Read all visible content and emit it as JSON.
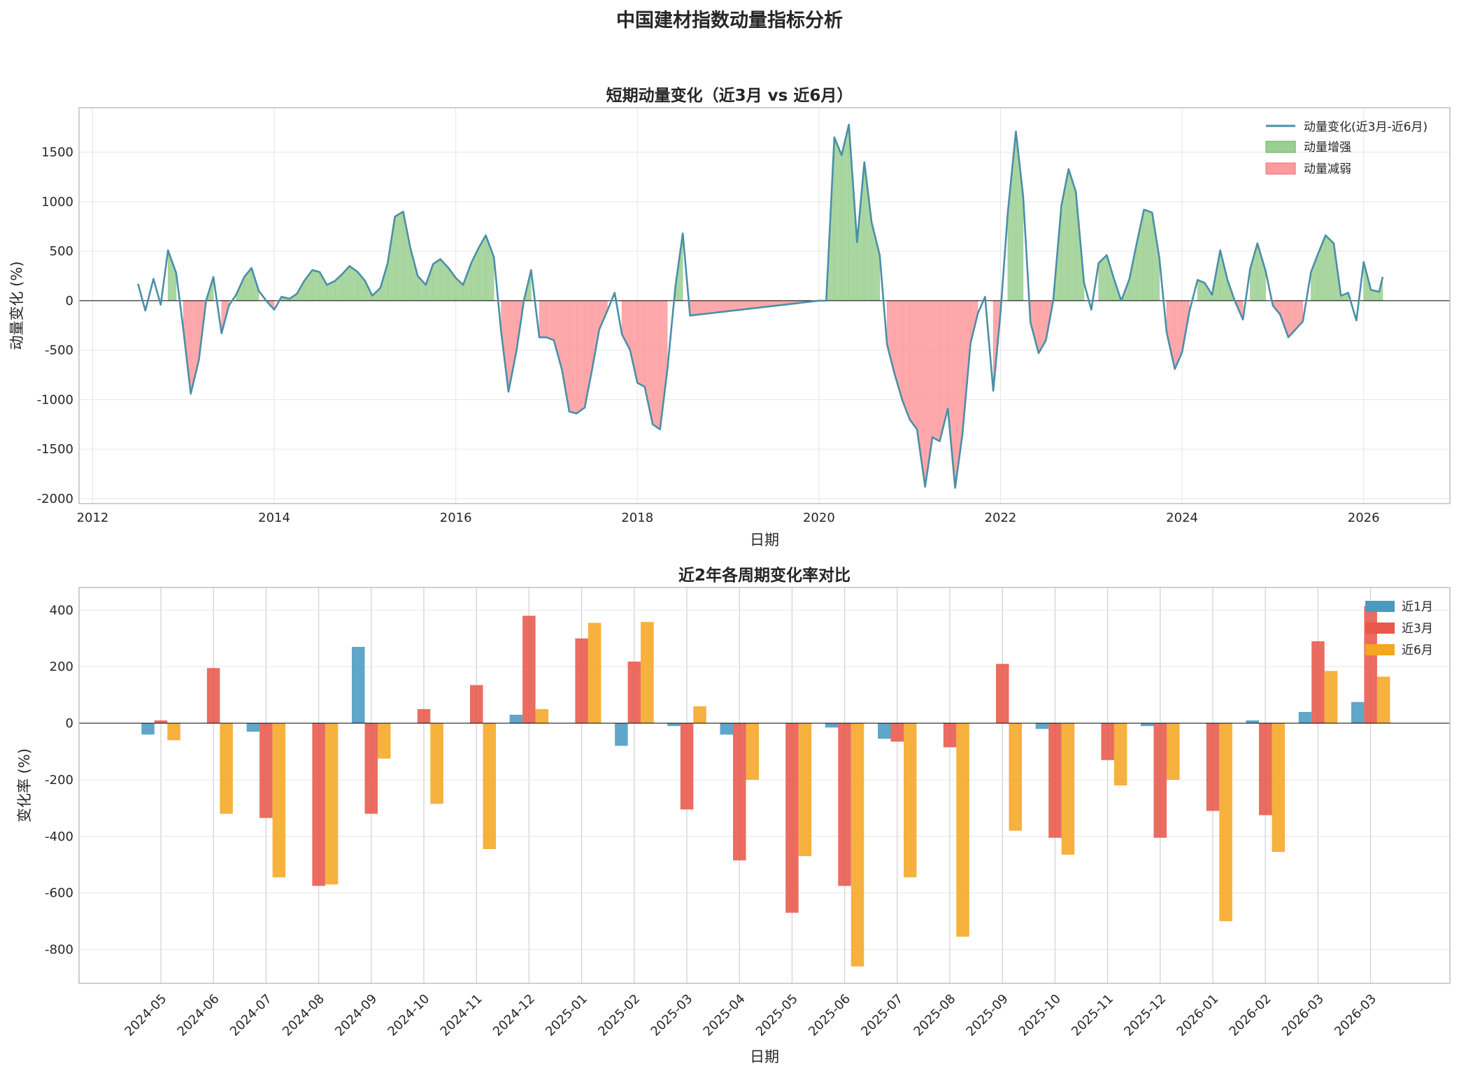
{
  "figure_title": "中国建材指数动量指标分析",
  "colors": {
    "line": "#4a8fa8",
    "pos_fill": "#9bcf91",
    "neg_fill": "#fd9a9e",
    "m1": "#4a9ac0",
    "m3": "#e8584a",
    "m6": "#f5a623",
    "grid": "#e6e6e6",
    "axis": "#bfbfbf",
    "text": "#262626"
  },
  "chart_data": [
    {
      "type": "line",
      "title": "短期动量变化（近3月 vs 近6月）",
      "xlabel": "日期",
      "ylabel": "动量变化 (%)",
      "xlim": [
        2011.85,
        2026.95
      ],
      "ylim": [
        -2050,
        1950
      ],
      "xticks": [
        2012,
        2014,
        2016,
        2018,
        2020,
        2022,
        2024,
        2026
      ],
      "xtick_labels": [
        "2012",
        "2014",
        "2016",
        "2018",
        "2020",
        "2022",
        "2024",
        "2026"
      ],
      "yticks": [
        -2000,
        -1500,
        -1000,
        -500,
        0,
        500,
        1000,
        1500
      ],
      "ytick_labels": [
        "-2000",
        "-1500",
        "-1000",
        "-500",
        "0",
        "500",
        "1000",
        "1500"
      ],
      "legend": {
        "position": "top-right",
        "line_label": "动量变化(近3月-近6月)",
        "pos_label": "动量增强",
        "neg_label": "动量减弱"
      },
      "x": [
        2012.5,
        2012.58,
        2012.67,
        2012.75,
        2012.83,
        2012.92,
        2013.0,
        2013.08,
        2013.17,
        2013.25,
        2013.33,
        2013.42,
        2013.5,
        2013.58,
        2013.67,
        2013.75,
        2013.83,
        2013.92,
        2014.0,
        2014.08,
        2014.17,
        2014.25,
        2014.33,
        2014.42,
        2014.5,
        2014.58,
        2014.67,
        2014.75,
        2014.83,
        2014.92,
        2015.0,
        2015.08,
        2015.17,
        2015.25,
        2015.33,
        2015.42,
        2015.5,
        2015.58,
        2015.67,
        2015.75,
        2015.83,
        2015.92,
        2016.0,
        2016.08,
        2016.17,
        2016.25,
        2016.33,
        2016.42,
        2016.5,
        2016.58,
        2016.67,
        2016.75,
        2016.83,
        2016.92,
        2017.0,
        2017.08,
        2017.17,
        2017.25,
        2017.33,
        2017.42,
        2017.5,
        2017.58,
        2017.67,
        2017.75,
        2017.83,
        2017.92,
        2018.0,
        2018.08,
        2018.17,
        2018.25,
        2018.33,
        2018.42,
        2018.5,
        2018.58,
        2020.0,
        2020.08,
        2020.17,
        2020.25,
        2020.33,
        2020.42,
        2020.5,
        2020.58,
        2020.67,
        2020.75,
        2020.83,
        2020.92,
        2021.0,
        2021.08,
        2021.17,
        2021.25,
        2021.33,
        2021.42,
        2021.5,
        2021.58,
        2021.67,
        2021.75,
        2021.83,
        2021.92,
        2022.0,
        2022.08,
        2022.17,
        2022.25,
        2022.33,
        2022.42,
        2022.5,
        2022.58,
        2022.67,
        2022.75,
        2022.83,
        2022.92,
        2023.0,
        2023.08,
        2023.17,
        2023.25,
        2023.33,
        2023.42,
        2023.5,
        2023.58,
        2023.67,
        2023.75,
        2023.83,
        2023.92,
        2024.0,
        2024.08,
        2024.17,
        2024.25,
        2024.33,
        2024.42,
        2024.5,
        2024.58,
        2024.67,
        2024.75,
        2024.83,
        2024.92,
        2025.0,
        2025.08,
        2025.17,
        2025.25,
        2025.33,
        2025.42,
        2025.5,
        2025.58,
        2025.67,
        2025.75,
        2025.83,
        2025.92,
        2026.0,
        2026.08,
        2026.17,
        2026.21
      ],
      "y": [
        170,
        -100,
        220,
        -40,
        510,
        280,
        -300,
        -940,
        -600,
        0,
        240,
        -330,
        -50,
        60,
        240,
        330,
        100,
        -10,
        -90,
        40,
        20,
        70,
        200,
        310,
        290,
        160,
        200,
        270,
        350,
        290,
        200,
        50,
        130,
        380,
        850,
        900,
        530,
        250,
        160,
        370,
        420,
        330,
        230,
        160,
        380,
        530,
        660,
        440,
        -320,
        -920,
        -500,
        0,
        310,
        -370,
        -370,
        -400,
        -700,
        -1120,
        -1140,
        -1080,
        -700,
        -290,
        -100,
        80,
        -340,
        -500,
        -830,
        -870,
        -1250,
        -1300,
        -700,
        150,
        680,
        -150,
        0,
        0,
        1650,
        1470,
        1780,
        590,
        1400,
        790,
        460,
        -440,
        -730,
        -1010,
        -1200,
        -1300,
        -1880,
        -1380,
        -1420,
        -1090,
        -1890,
        -1350,
        -430,
        -130,
        40,
        -910,
        -120,
        890,
        1710,
        1050,
        -220,
        -530,
        -400,
        0,
        960,
        1330,
        1100,
        180,
        -90,
        380,
        460,
        220,
        0,
        220,
        580,
        920,
        890,
        430,
        -320,
        -690,
        -520,
        -110,
        210,
        180,
        60,
        510,
        210,
        0,
        -190,
        320,
        580,
        300,
        -50,
        -140,
        -370,
        -290,
        -210,
        290,
        480,
        660,
        580,
        50,
        80,
        -200,
        390,
        110,
        90,
        240
      ]
    },
    {
      "type": "bar",
      "title": "近2年各周期变化率对比",
      "xlabel": "日期",
      "ylabel": "变化率 (%)",
      "ylim": [
        -920,
        480
      ],
      "yticks": [
        -800,
        -600,
        -400,
        -200,
        0,
        200,
        400
      ],
      "ytick_labels": [
        "-800",
        "-600",
        "-400",
        "-200",
        "0",
        "200",
        "400"
      ],
      "legend_position": "top-right",
      "categories": [
        "2024-05",
        "2024-06",
        "2024-07",
        "2024-08",
        "2024-09",
        "2024-10",
        "2024-11",
        "2024-12",
        "2025-01",
        "2025-02",
        "2025-03",
        "2025-04",
        "2025-05",
        "2025-06",
        "2025-07",
        "2025-08",
        "2025-09",
        "2025-10",
        "2025-11",
        "2025-12",
        "2026-01",
        "2026-02",
        "2026-03",
        "2026-03"
      ],
      "series": [
        {
          "name": "近1月",
          "values": [
            -40,
            0,
            -30,
            0,
            270,
            0,
            0,
            30,
            0,
            -80,
            -10,
            -40,
            0,
            -15,
            -55,
            0,
            0,
            -20,
            0,
            -10,
            0,
            10,
            40,
            75
          ]
        },
        {
          "name": "近3月",
          "values": [
            10,
            195,
            -335,
            -575,
            -320,
            50,
            135,
            380,
            300,
            218,
            -305,
            -485,
            -670,
            -575,
            -65,
            -85,
            210,
            -405,
            -130,
            -405,
            -310,
            -325,
            290,
            415
          ]
        },
        {
          "name": "近6月",
          "values": [
            -60,
            -320,
            -545,
            -570,
            -125,
            -285,
            -445,
            50,
            355,
            358,
            60,
            -200,
            -470,
            -860,
            -545,
            -755,
            -380,
            -465,
            -220,
            -200,
            -700,
            -455,
            185,
            165
          ]
        }
      ]
    }
  ]
}
